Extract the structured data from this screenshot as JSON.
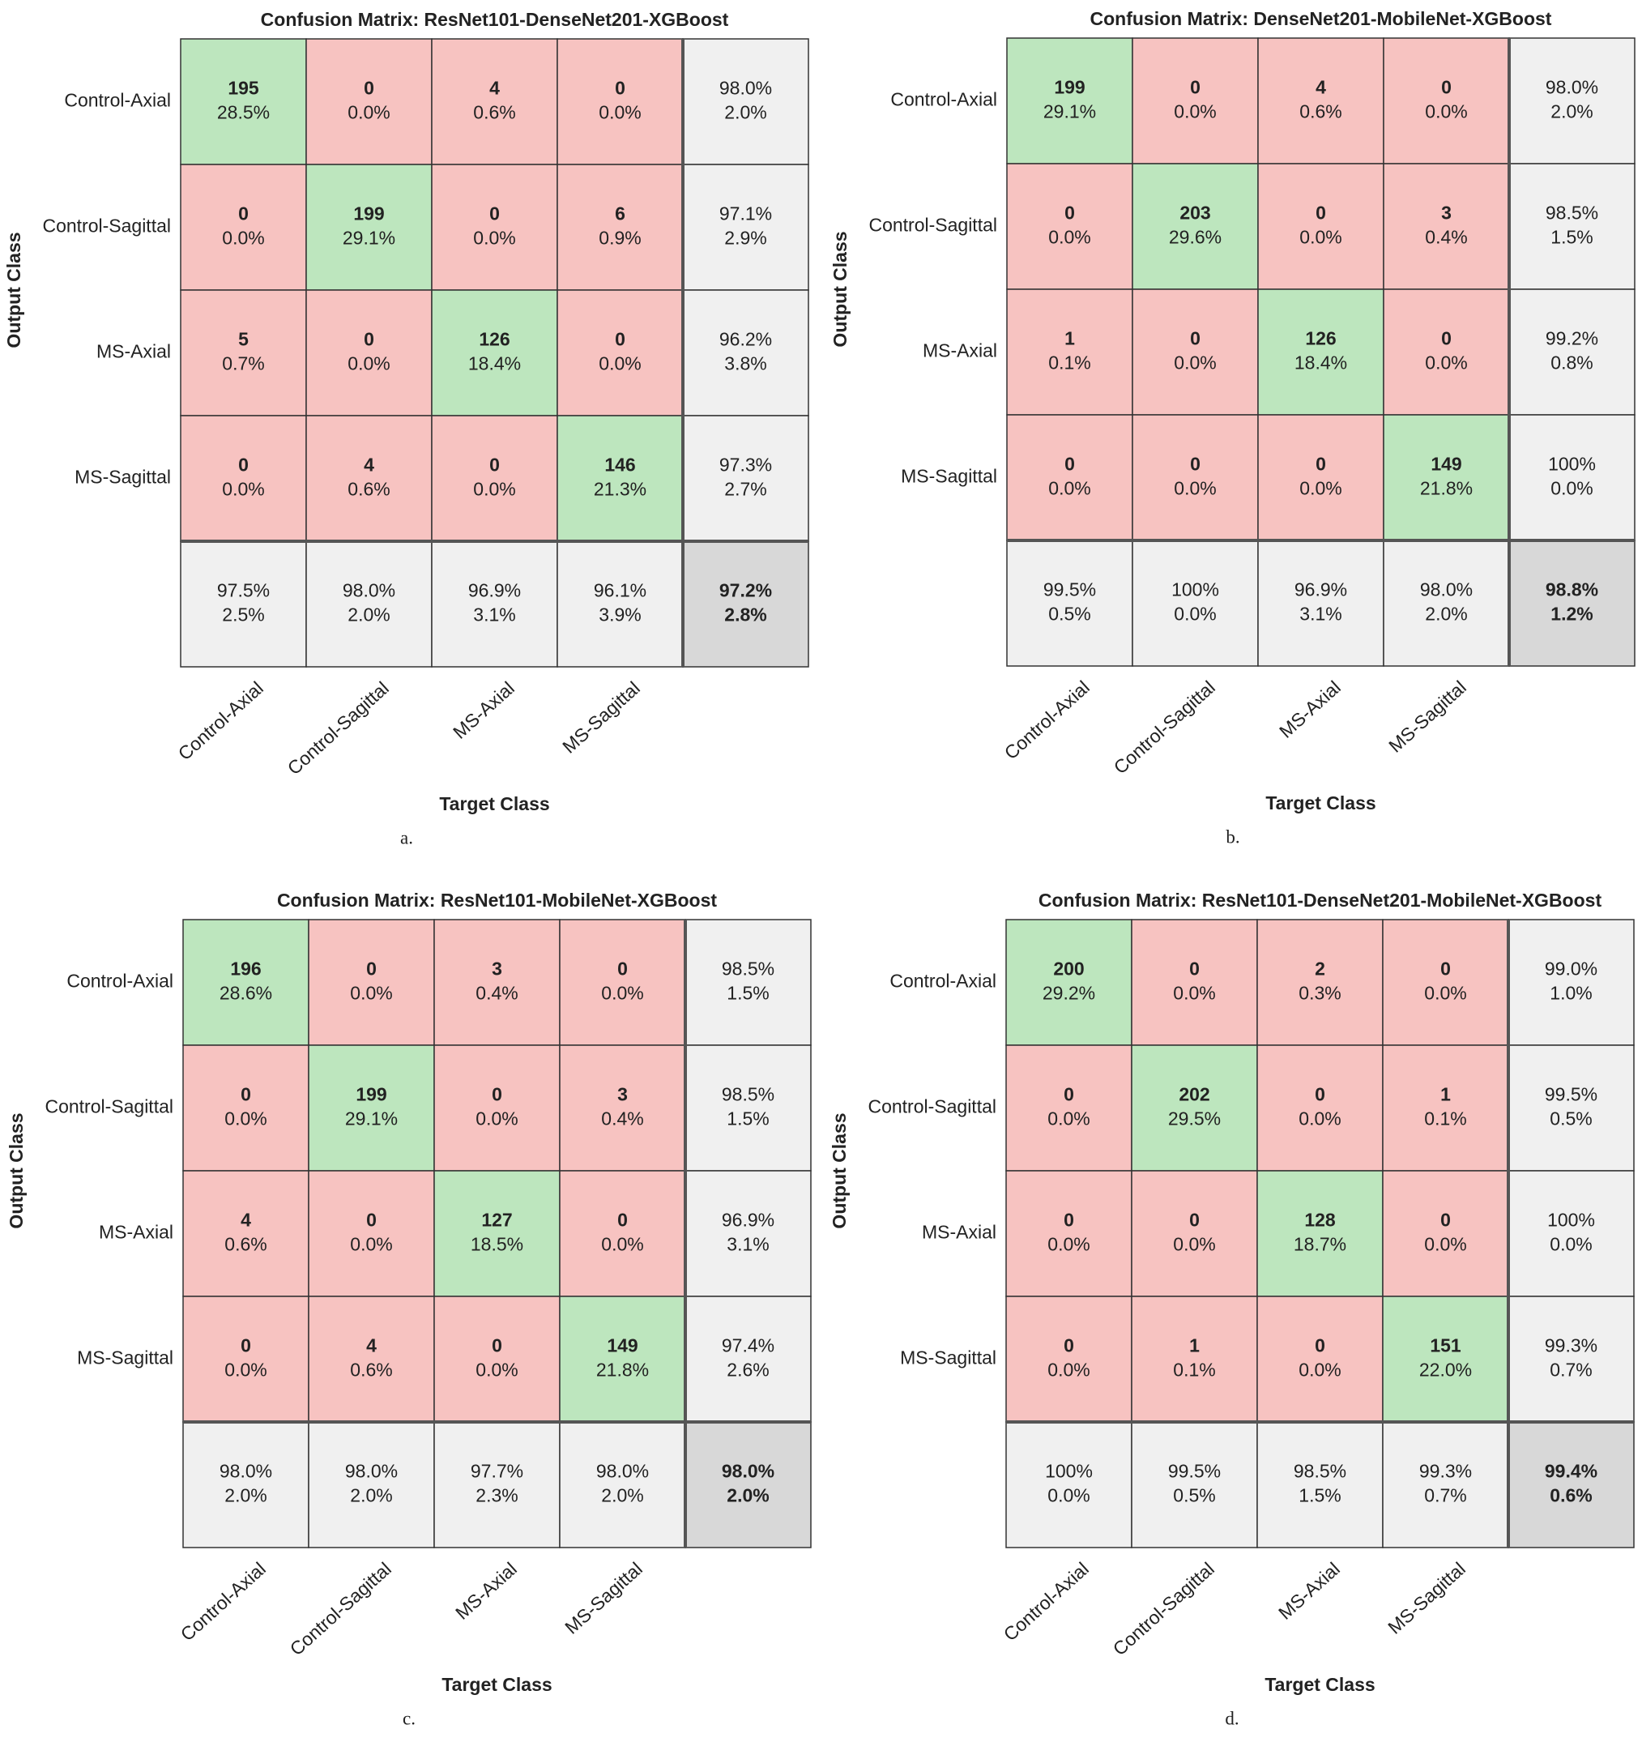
{
  "chart_data": [
    {
      "type": "confusion-matrix",
      "title": "Confusion Matrix: ResNet101-DenseNet201-XGBoost",
      "xlabel": "Target Class",
      "ylabel": "Output Class",
      "caption": "a.",
      "classes": [
        "Control-Axial",
        "Control-Sagittal",
        "MS-Axial",
        "MS-Sagittal"
      ],
      "counts": [
        [
          195,
          0,
          4,
          0
        ],
        [
          0,
          199,
          0,
          6
        ],
        [
          5,
          0,
          126,
          0
        ],
        [
          0,
          4,
          0,
          146
        ]
      ],
      "percents": [
        [
          "28.5%",
          "0.0%",
          "0.6%",
          "0.0%"
        ],
        [
          "0.0%",
          "29.1%",
          "0.0%",
          "0.9%"
        ],
        [
          "0.7%",
          "0.0%",
          "18.4%",
          "0.0%"
        ],
        [
          "0.0%",
          "0.6%",
          "0.0%",
          "21.3%"
        ]
      ],
      "row_summary": [
        [
          "98.0%",
          "2.0%"
        ],
        [
          "97.1%",
          "2.9%"
        ],
        [
          "96.2%",
          "3.8%"
        ],
        [
          "97.3%",
          "2.7%"
        ]
      ],
      "col_summary": [
        [
          "97.5%",
          "2.5%"
        ],
        [
          "98.0%",
          "2.0%"
        ],
        [
          "96.9%",
          "3.1%"
        ],
        [
          "96.1%",
          "3.9%"
        ]
      ],
      "overall": [
        "97.2%",
        "2.8%"
      ],
      "colors": {
        "correct": "#bde6be",
        "wrong": "#f7c3c1",
        "summary": "#f0f0f0",
        "overall": "#d8d8d8",
        "good_text": "#3a9a3a",
        "bad_text": "#c23b36"
      }
    },
    {
      "type": "confusion-matrix",
      "title": "Confusion Matrix: DenseNet201-MobileNet-XGBoost",
      "xlabel": "Target Class",
      "ylabel": "Output Class",
      "caption": "b.",
      "classes": [
        "Control-Axial",
        "Control-Sagittal",
        "MS-Axial",
        "MS-Sagittal"
      ],
      "counts": [
        [
          199,
          0,
          4,
          0
        ],
        [
          0,
          203,
          0,
          3
        ],
        [
          1,
          0,
          126,
          0
        ],
        [
          0,
          0,
          0,
          149
        ]
      ],
      "percents": [
        [
          "29.1%",
          "0.0%",
          "0.6%",
          "0.0%"
        ],
        [
          "0.0%",
          "29.6%",
          "0.0%",
          "0.4%"
        ],
        [
          "0.1%",
          "0.0%",
          "18.4%",
          "0.0%"
        ],
        [
          "0.0%",
          "0.0%",
          "0.0%",
          "21.8%"
        ]
      ],
      "row_summary": [
        [
          "98.0%",
          "2.0%"
        ],
        [
          "98.5%",
          "1.5%"
        ],
        [
          "99.2%",
          "0.8%"
        ],
        [
          "100%",
          "0.0%"
        ]
      ],
      "col_summary": [
        [
          "99.5%",
          "0.5%"
        ],
        [
          "100%",
          "0.0%"
        ],
        [
          "96.9%",
          "3.1%"
        ],
        [
          "98.0%",
          "2.0%"
        ]
      ],
      "overall": [
        "98.8%",
        "1.2%"
      ],
      "colors": {
        "correct": "#bde6be",
        "wrong": "#f7c3c1",
        "summary": "#f0f0f0",
        "overall": "#d8d8d8",
        "good_text": "#3a9a3a",
        "bad_text": "#c23b36"
      }
    },
    {
      "type": "confusion-matrix",
      "title": "Confusion Matrix: ResNet101-MobileNet-XGBoost",
      "xlabel": "Target Class",
      "ylabel": "Output Class",
      "caption": "c.",
      "classes": [
        "Control-Axial",
        "Control-Sagittal",
        "MS-Axial",
        "MS-Sagittal"
      ],
      "counts": [
        [
          196,
          0,
          3,
          0
        ],
        [
          0,
          199,
          0,
          3
        ],
        [
          4,
          0,
          127,
          0
        ],
        [
          0,
          4,
          0,
          149
        ]
      ],
      "percents": [
        [
          "28.6%",
          "0.0%",
          "0.4%",
          "0.0%"
        ],
        [
          "0.0%",
          "29.1%",
          "0.0%",
          "0.4%"
        ],
        [
          "0.6%",
          "0.0%",
          "18.5%",
          "0.0%"
        ],
        [
          "0.0%",
          "0.6%",
          "0.0%",
          "21.8%"
        ]
      ],
      "row_summary": [
        [
          "98.5%",
          "1.5%"
        ],
        [
          "98.5%",
          "1.5%"
        ],
        [
          "96.9%",
          "3.1%"
        ],
        [
          "97.4%",
          "2.6%"
        ]
      ],
      "col_summary": [
        [
          "98.0%",
          "2.0%"
        ],
        [
          "98.0%",
          "2.0%"
        ],
        [
          "97.7%",
          "2.3%"
        ],
        [
          "98.0%",
          "2.0%"
        ]
      ],
      "overall": [
        "98.0%",
        "2.0%"
      ],
      "colors": {
        "correct": "#bde6be",
        "wrong": "#f7c3c1",
        "summary": "#f0f0f0",
        "overall": "#d8d8d8",
        "good_text": "#3a9a3a",
        "bad_text": "#c23b36"
      }
    },
    {
      "type": "confusion-matrix",
      "title": "Confusion Matrix: ResNet101-DenseNet201-MobileNet-XGBoost",
      "xlabel": "Target Class",
      "ylabel": "Output Class",
      "caption": "d.",
      "classes": [
        "Control-Axial",
        "Control-Sagittal",
        "MS-Axial",
        "MS-Sagittal"
      ],
      "counts": [
        [
          200,
          0,
          2,
          0
        ],
        [
          0,
          202,
          0,
          1
        ],
        [
          0,
          0,
          128,
          0
        ],
        [
          0,
          1,
          0,
          151
        ]
      ],
      "percents": [
        [
          "29.2%",
          "0.0%",
          "0.3%",
          "0.0%"
        ],
        [
          "0.0%",
          "29.5%",
          "0.0%",
          "0.1%"
        ],
        [
          "0.0%",
          "0.0%",
          "18.7%",
          "0.0%"
        ],
        [
          "0.0%",
          "0.1%",
          "0.0%",
          "22.0%"
        ]
      ],
      "row_summary": [
        [
          "99.0%",
          "1.0%"
        ],
        [
          "99.5%",
          "0.5%"
        ],
        [
          "100%",
          "0.0%"
        ],
        [
          "99.3%",
          "0.7%"
        ]
      ],
      "col_summary": [
        [
          "100%",
          "0.0%"
        ],
        [
          "99.5%",
          "0.5%"
        ],
        [
          "98.5%",
          "1.5%"
        ],
        [
          "99.3%",
          "0.7%"
        ]
      ],
      "overall": [
        "99.4%",
        "0.6%"
      ],
      "colors": {
        "correct": "#bde6be",
        "wrong": "#f7c3c1",
        "summary": "#f0f0f0",
        "overall": "#d8d8d8",
        "good_text": "#3a9a3a",
        "bad_text": "#c23b36"
      }
    }
  ]
}
